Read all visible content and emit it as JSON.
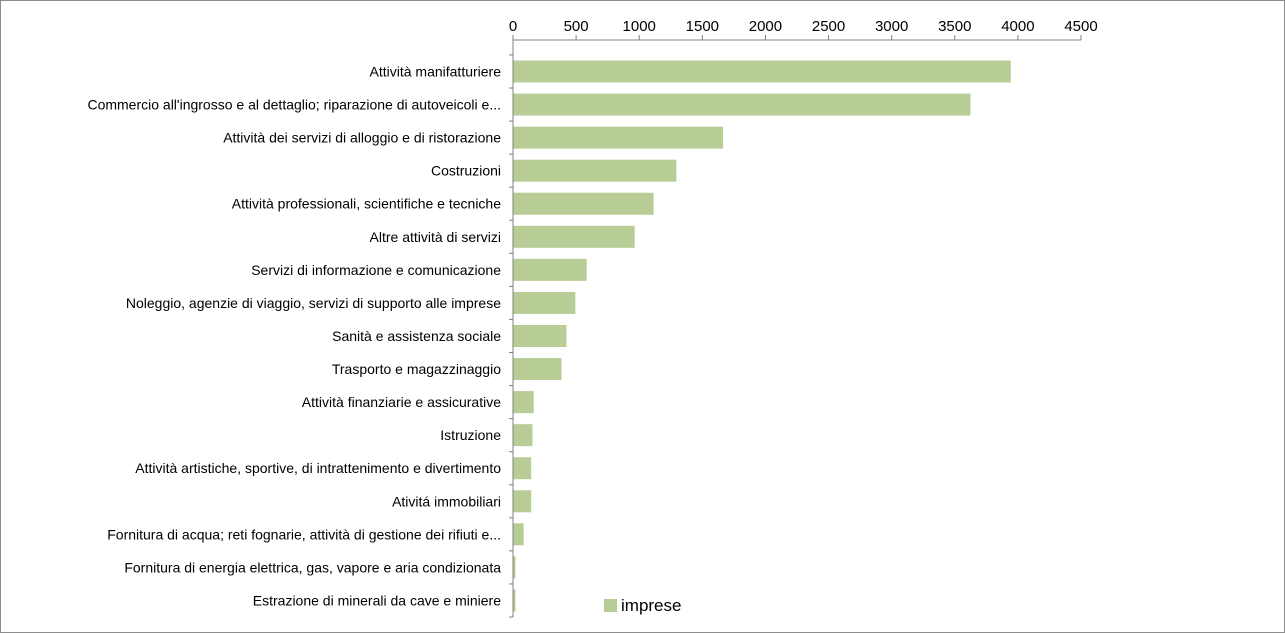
{
  "chart_data": {
    "type": "bar",
    "orientation": "horizontal",
    "x_axis_position": "top",
    "grid": false,
    "legend_position": "bottom",
    "xlim": [
      0,
      4500
    ],
    "x_ticks": [
      0,
      500,
      1000,
      1500,
      2000,
      2500,
      3000,
      3500,
      4000,
      4500
    ],
    "categories": [
      "Attività manifatturiere",
      "Commercio all'ingrosso e al dettaglio; riparazione di autoveicoli e...",
      "Attività dei servizi di alloggio e di ristorazione",
      "Costruzioni",
      "Attività professionali, scientifiche e tecniche",
      "Altre attività di servizi",
      "Servizi di informazione e comunicazione",
      "Noleggio, agenzie di viaggio, servizi di supporto alle imprese",
      "Sanità e assistenza sociale",
      "Trasporto e magazzinaggio",
      "Attività finanziarie e assicurative",
      "Istruzione",
      "Attività artistiche, sportive, di intrattenimento e divertimento",
      "Ativitá immobiliari",
      "Fornitura di acqua; reti fognarie, attività di gestione dei rifiuti e...",
      "Fornitura di energia elettrica, gas, vapore e aria condizionata",
      "Estrazione di minerali da cave e miniere"
    ],
    "series": [
      {
        "name": "imprese",
        "color": "#b8cc96",
        "values": [
          3940,
          3620,
          1660,
          1290,
          1110,
          960,
          580,
          490,
          420,
          380,
          160,
          150,
          140,
          140,
          80,
          15,
          12
        ]
      }
    ]
  }
}
